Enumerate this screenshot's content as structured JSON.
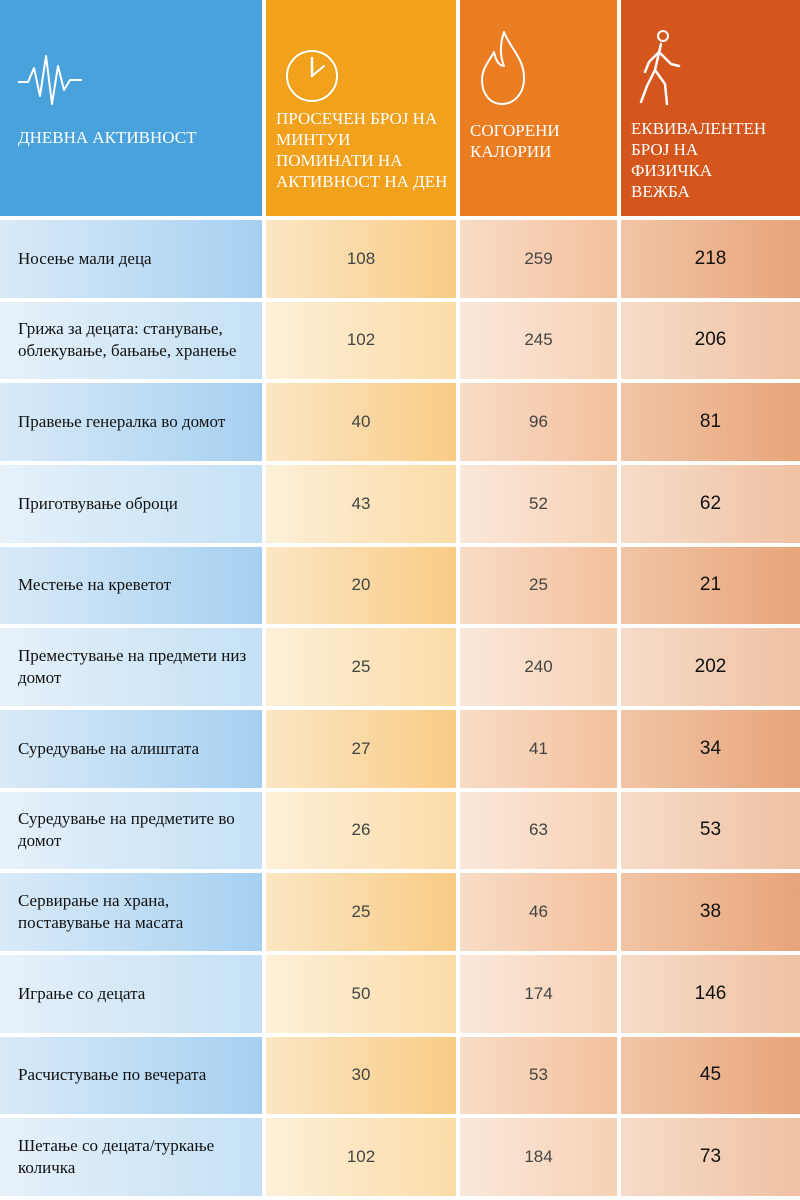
{
  "header": {
    "col1": {
      "label": "ДНЕВНА АКТИВНОСТ",
      "icon": "heartbeat-icon"
    },
    "col2": {
      "label": "ПРОСЕЧЕН БРОЈ НА МИНТУИ ПОМИНАТИ НА АКТИВНОСТ НА ДЕН",
      "icon": "clock-icon"
    },
    "col3": {
      "label": "СОГОРЕНИ КАЛОРИИ",
      "icon": "flame-icon"
    },
    "col4": {
      "label": "ЕКВИВАЛЕНТЕН БРОЈ НА ФИЗИЧКА ВЕЖБА",
      "icon": "walking-person-icon"
    }
  },
  "colors": {
    "blue": "#4aa2dc",
    "yellow": "#f2a11d",
    "orange": "#ea7d22",
    "red": "#d5561c"
  },
  "rows": [
    {
      "activity": "Носење мали деца",
      "minutes": "108",
      "calories": "259",
      "equivalent": "218"
    },
    {
      "activity": "Грижа за децата: станување, облекување, бањање, хранење",
      "minutes": "102",
      "calories": "245",
      "equivalent": "206"
    },
    {
      "activity": "Правење генералка во домот",
      "minutes": "40",
      "calories": "96",
      "equivalent": "81"
    },
    {
      "activity": "Приготвување оброци",
      "minutes": "43",
      "calories": "52",
      "equivalent": "62"
    },
    {
      "activity": "Местење на креветот",
      "minutes": "20",
      "calories": "25",
      "equivalent": "21"
    },
    {
      "activity": "Преместување на предмети низ домот",
      "minutes": "25",
      "calories": "240",
      "equivalent": "202"
    },
    {
      "activity": "Суредување на алиштата",
      "minutes": "27",
      "calories": "41",
      "equivalent": "34"
    },
    {
      "activity": "Суредување на предметите во домот",
      "minutes": "26",
      "calories": "63",
      "equivalent": "53"
    },
    {
      "activity": "Сервирање на храна, поставување на масата",
      "minutes": "25",
      "calories": "46",
      "equivalent": "38"
    },
    {
      "activity": "Играње со децата",
      "minutes": "50",
      "calories": "174",
      "equivalent": "146"
    },
    {
      "activity": "Расчистување по вечерата",
      "minutes": "30",
      "calories": "53",
      "equivalent": "45"
    },
    {
      "activity": "Шетање со децата/туркање количка",
      "minutes": "102",
      "calories": "184",
      "equivalent": "73"
    }
  ]
}
